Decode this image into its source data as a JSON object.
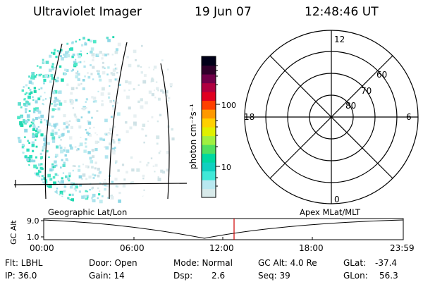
{
  "header": {
    "title": "Ultraviolet Imager",
    "date": "19 Jun 07",
    "time": "12:48:46 UT"
  },
  "colorbar": {
    "unit_label": "photon cm⁻²s⁻¹",
    "ticks": [
      "100",
      "10"
    ],
    "colors": [
      "#d8eaea",
      "#b8e8f0",
      "#40e8d8",
      "#10d0c0",
      "#00d8a0",
      "#50e060",
      "#a0f040",
      "#e0f000",
      "#ffd000",
      "#ff9800",
      "#ff4000",
      "#e00020",
      "#b00040",
      "#700048",
      "#30002a",
      "#000018"
    ]
  },
  "polar": {
    "mlt_labels": {
      "top": "12",
      "right": "6",
      "bottom": "0",
      "left": "18"
    },
    "lat_labels": [
      "60",
      "70",
      "80"
    ]
  },
  "map_labels": {
    "left": "Geographic Lat/Lon",
    "right": "Apex MLat/MLT"
  },
  "timeline": {
    "ylabel": "GC Alt",
    "y_ticks": [
      "9.0",
      "1.0"
    ],
    "x_ticks": [
      "00:00",
      "06:00",
      "12:00",
      "18:00",
      "23:59"
    ],
    "marker_color": "#d00000"
  },
  "status": {
    "flt": "Flt: LBHL",
    "ip": "IP: 36.0",
    "door": "Door: Open",
    "gain": "Gain: 14",
    "mode": "Mode: Normal",
    "dsp_label": "Dsp:",
    "dsp_value": "2.6",
    "gcalt": "GC Alt: 4.0 Re",
    "seq": "Seq: 39",
    "glat_label": "GLat:",
    "glat_value": "-37.4",
    "glon_label": "GLon:",
    "glon_value": "56.3"
  }
}
